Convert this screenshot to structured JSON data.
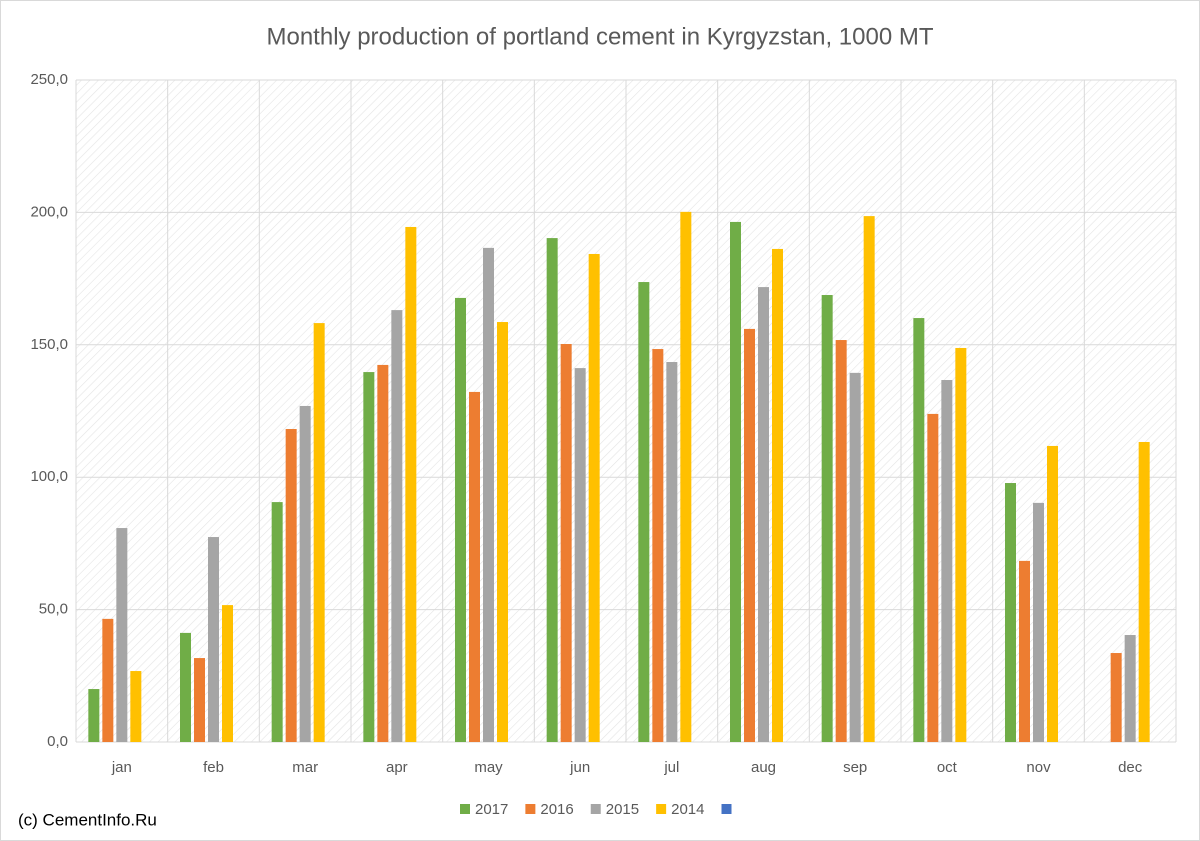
{
  "chart_data": {
    "type": "bar",
    "title": "Monthly production of portland cement in Kyrgyzstan, 1000 MT",
    "source": "(c) CementInfo.Ru",
    "categories": [
      "jan",
      "feb",
      "mar",
      "apr",
      "may",
      "jun",
      "jul",
      "aug",
      "sep",
      "oct",
      "nov",
      "dec"
    ],
    "series": [
      {
        "name": "2017",
        "color": "#70ad47",
        "values": [
          20.0,
          41.2,
          90.6,
          139.7,
          167.7,
          190.3,
          173.7,
          196.4,
          168.8,
          160.1,
          97.8,
          null
        ]
      },
      {
        "name": "2016",
        "color": "#ed7d31",
        "values": [
          46.5,
          31.7,
          118.2,
          142.4,
          132.2,
          150.3,
          148.4,
          156.0,
          151.8,
          123.9,
          68.4,
          33.6
        ]
      },
      {
        "name": "2015",
        "color": "#a5a5a5",
        "values": [
          80.8,
          77.4,
          126.9,
          163.1,
          186.6,
          141.2,
          143.5,
          171.8,
          139.4,
          136.7,
          90.3,
          40.4
        ]
      },
      {
        "name": "2014",
        "color": "#ffc000",
        "values": [
          26.8,
          51.7,
          158.2,
          194.5,
          158.6,
          184.3,
          200.2,
          186.2,
          198.6,
          148.8,
          111.8,
          113.3
        ]
      },
      {
        "color": "#4472c4",
        "values": [
          null,
          null,
          null,
          null,
          null,
          null,
          null,
          null,
          null,
          null,
          null,
          null
        ]
      }
    ],
    "ylim": [
      0,
      250
    ],
    "yticks": [
      {
        "value": 0,
        "label": "0,0"
      },
      {
        "value": 50,
        "label": "50,0"
      },
      {
        "value": 100,
        "label": "100,0"
      },
      {
        "value": 150,
        "label": "150,0"
      },
      {
        "value": 200,
        "label": "200,0"
      },
      {
        "value": 250,
        "label": "250,0"
      }
    ],
    "grid": true,
    "legend": "bottom"
  }
}
